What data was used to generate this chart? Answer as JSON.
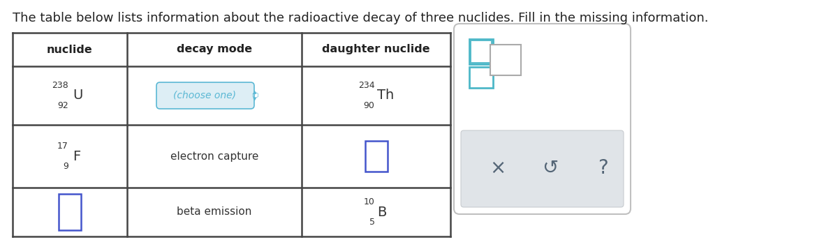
{
  "title": "The table below lists information about the radioactive decay of three nuclides. Fill in the missing information.",
  "title_fontsize": 13.0,
  "bg_color": "#ffffff",
  "table_border_color": "#444444",
  "header_labels": [
    "nuclide",
    "decay mode",
    "daughter nuclide"
  ],
  "row1_nuclide_super": "238",
  "row1_nuclide_sub": "92",
  "row1_nuclide_sym": "U",
  "row1_mode": "(choose one)",
  "row1_mode_color": "#5bb8d4",
  "row1_daughter_super": "234",
  "row1_daughter_sub": "90",
  "row1_daughter_sym": "Th",
  "row2_nuclide_super": "17",
  "row2_nuclide_sub": "9",
  "row2_nuclide_sym": "F",
  "row2_mode": "electron capture",
  "row3_mode": "beta emission",
  "row3_daughter_super": "10",
  "row3_daughter_sub": "5",
  "row3_daughter_sym": "B",
  "panel_box_color": "#4db8c8",
  "panel_box_color2": "#888888",
  "panel_icon_color": "#556677",
  "answer_box_color": "#4455cc"
}
